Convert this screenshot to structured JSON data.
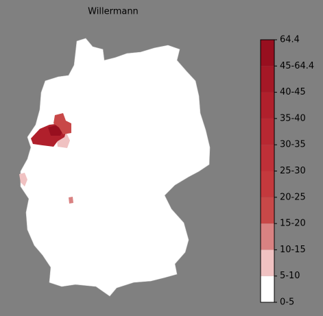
{
  "title": "Willermann",
  "colorbar": {
    "labels": [
      "0-5",
      "5-10",
      "10-15",
      "15-20",
      "20-25",
      "25-30",
      "30-35",
      "35-40",
      "40-45",
      "45-64.4",
      "64.4"
    ],
    "colors": [
      "#ffffff",
      "#f0c2c2",
      "#d98282",
      "#c84848",
      "#c4393d",
      "#bf3038",
      "#b82832",
      "#b0202c",
      "#a51826",
      "#980f1f"
    ]
  }
}
